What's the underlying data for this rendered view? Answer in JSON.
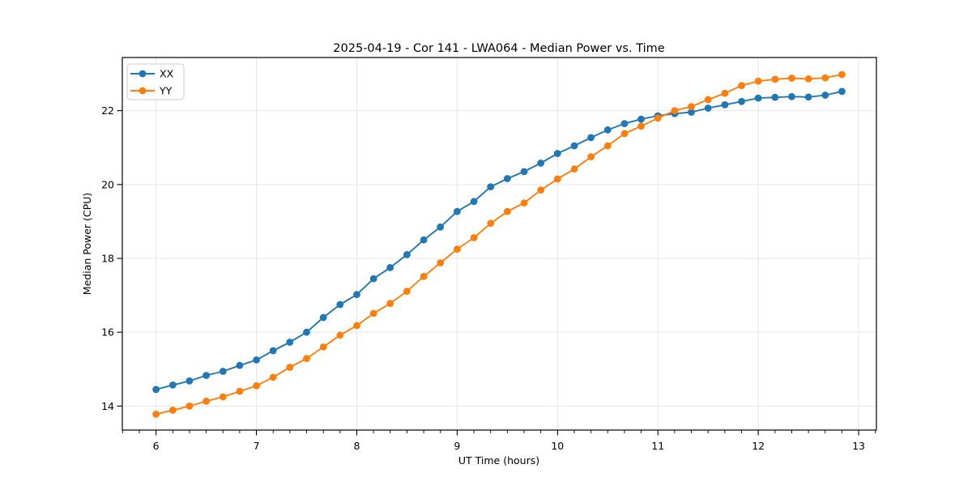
{
  "chart_data": {
    "type": "line",
    "title": "2025-04-19 - Cor 141 - LWA064 - Median Power vs. Time",
    "xlabel": "UT Time (hours)",
    "ylabel": "Median Power (CPU)",
    "xlim": [
      5.664,
      13.177
    ],
    "ylim": [
      13.35,
      23.44
    ],
    "x_ticks": [
      6,
      7,
      8,
      9,
      10,
      11,
      12,
      13
    ],
    "y_ticks": [
      14,
      16,
      18,
      20,
      22
    ],
    "minor_x_tick_step": 0.16667,
    "grid": true,
    "legend_position": "upper-left",
    "marker": "circle",
    "x": [
      6,
      6.167,
      6.333,
      6.5,
      6.667,
      6.833,
      7,
      7.167,
      7.333,
      7.5,
      7.667,
      7.833,
      8,
      8.167,
      8.333,
      8.5,
      8.667,
      8.833,
      9,
      9.167,
      9.333,
      9.5,
      9.667,
      9.833,
      10,
      10.167,
      10.333,
      10.5,
      10.667,
      10.833,
      11,
      11.167,
      11.333,
      11.5,
      11.667,
      11.833,
      12,
      12.167,
      12.333,
      12.5,
      12.667,
      12.833
    ],
    "series": [
      {
        "name": "XX",
        "color": "#1f77b4",
        "values": [
          14.45,
          14.57,
          14.68,
          14.83,
          14.94,
          15.1,
          15.25,
          15.5,
          15.73,
          16.0,
          16.4,
          16.75,
          17.02,
          17.45,
          17.75,
          18.1,
          18.5,
          18.85,
          19.27,
          19.54,
          19.94,
          20.16,
          20.35,
          20.58,
          20.84,
          21.05,
          21.27,
          21.48,
          21.65,
          21.77,
          21.86,
          21.92,
          21.96,
          22.07,
          22.16,
          22.25,
          22.34,
          22.36,
          22.38,
          22.37,
          22.42,
          22.52
        ]
      },
      {
        "name": "YY",
        "color": "#ff7f0e",
        "values": [
          13.78,
          13.89,
          14.0,
          14.13,
          14.25,
          14.4,
          14.55,
          14.78,
          15.05,
          15.29,
          15.6,
          15.92,
          16.18,
          16.51,
          16.78,
          17.11,
          17.51,
          17.88,
          18.25,
          18.56,
          18.95,
          19.27,
          19.5,
          19.85,
          20.15,
          20.42,
          20.75,
          21.05,
          21.38,
          21.58,
          21.8,
          22.0,
          22.11,
          22.3,
          22.47,
          22.68,
          22.8,
          22.85,
          22.88,
          22.86,
          22.89,
          22.98
        ]
      }
    ]
  },
  "colors": {
    "grid": "#e6e6e6",
    "spine": "#000000",
    "legend_border": "#cccccc",
    "background": "#ffffff"
  }
}
